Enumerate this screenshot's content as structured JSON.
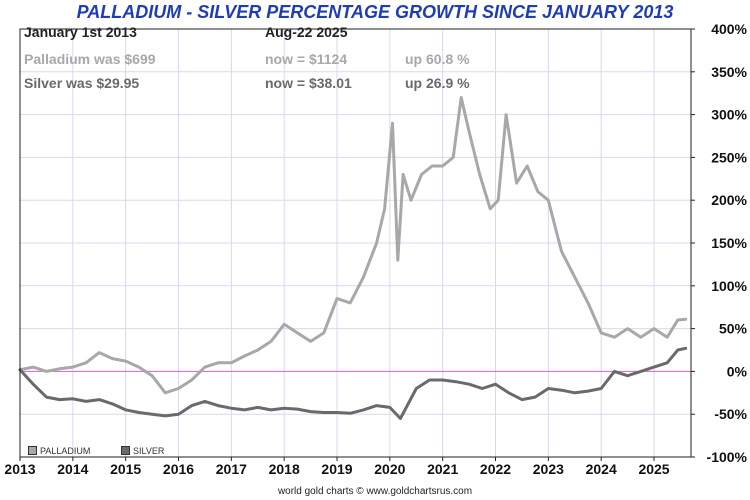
{
  "title": "PALLADIUM - SILVER PERCENTAGE GROWTH SINCE JANUARY 2013",
  "info": {
    "start_label": "January 1st 2013",
    "end_label": "Aug-22  2025",
    "palladium_start": "Palladium was $699",
    "palladium_now": "now = $1124",
    "palladium_change": "up 60.8 %",
    "silver_start": "Silver was $29.95",
    "silver_now": "now = $38.01",
    "silver_change": "up 26.9 %"
  },
  "credit": "world gold charts © www.goldchartsrus.com",
  "colors": {
    "palladium": "#a8a8a8",
    "silver": "#6a6a6a",
    "zero_line": "#d060d0",
    "grid": "#d8d8ee",
    "title": "#1f3cb8"
  },
  "chart_data": {
    "type": "line",
    "title": "PALLADIUM - SILVER PERCENTAGE GROWTH SINCE JANUARY 2013",
    "x_ticks": [
      "2013",
      "2014",
      "2015",
      "2016",
      "2017",
      "2018",
      "2019",
      "2020",
      "2021",
      "2022",
      "2023",
      "2024",
      "2025"
    ],
    "y_ticks": [
      "400%",
      "350%",
      "300%",
      "250%",
      "200%",
      "150%",
      "100%",
      "50%",
      "0%",
      "-50%",
      "-100%"
    ],
    "xlim": [
      2013,
      2025.7
    ],
    "ylim": [
      -100,
      400
    ],
    "grid": true,
    "legend": "bottom-left",
    "series": [
      {
        "name": "PALLADIUM",
        "x": [
          2013.0,
          2013.25,
          2013.5,
          2013.75,
          2014.0,
          2014.25,
          2014.5,
          2014.75,
          2015.0,
          2015.25,
          2015.5,
          2015.75,
          2016.0,
          2016.25,
          2016.5,
          2016.75,
          2017.0,
          2017.25,
          2017.5,
          2017.75,
          2018.0,
          2018.25,
          2018.5,
          2018.75,
          2019.0,
          2019.25,
          2019.5,
          2019.75,
          2019.9,
          2020.05,
          2020.15,
          2020.25,
          2020.4,
          2020.6,
          2020.8,
          2021.0,
          2021.2,
          2021.35,
          2021.5,
          2021.7,
          2021.9,
          2022.05,
          2022.2,
          2022.4,
          2022.6,
          2022.8,
          2023.0,
          2023.25,
          2023.5,
          2023.75,
          2024.0,
          2024.25,
          2024.5,
          2024.75,
          2025.0,
          2025.25,
          2025.45,
          2025.6
        ],
        "values": [
          2,
          5,
          0,
          3,
          5,
          10,
          22,
          15,
          12,
          5,
          -5,
          -25,
          -20,
          -10,
          5,
          10,
          10,
          18,
          25,
          35,
          55,
          45,
          35,
          45,
          85,
          80,
          110,
          150,
          190,
          290,
          130,
          230,
          200,
          230,
          240,
          240,
          250,
          320,
          280,
          230,
          190,
          200,
          300,
          220,
          240,
          210,
          200,
          140,
          110,
          80,
          45,
          40,
          50,
          40,
          50,
          40,
          60,
          61
        ]
      },
      {
        "name": "SILVER",
        "x": [
          2013.0,
          2013.25,
          2013.5,
          2013.75,
          2014.0,
          2014.25,
          2014.5,
          2014.75,
          2015.0,
          2015.25,
          2015.5,
          2015.75,
          2016.0,
          2016.25,
          2016.5,
          2016.75,
          2017.0,
          2017.25,
          2017.5,
          2017.75,
          2018.0,
          2018.25,
          2018.5,
          2018.75,
          2019.0,
          2019.25,
          2019.5,
          2019.75,
          2020.0,
          2020.2,
          2020.5,
          2020.75,
          2021.0,
          2021.25,
          2021.5,
          2021.75,
          2022.0,
          2022.25,
          2022.5,
          2022.75,
          2023.0,
          2023.25,
          2023.5,
          2023.75,
          2024.0,
          2024.25,
          2024.5,
          2024.75,
          2025.0,
          2025.25,
          2025.45,
          2025.6
        ],
        "values": [
          2,
          -15,
          -30,
          -33,
          -32,
          -35,
          -33,
          -38,
          -45,
          -48,
          -50,
          -52,
          -50,
          -40,
          -35,
          -40,
          -43,
          -45,
          -42,
          -45,
          -43,
          -44,
          -47,
          -48,
          -48,
          -49,
          -45,
          -40,
          -42,
          -55,
          -20,
          -10,
          -10,
          -12,
          -15,
          -20,
          -15,
          -25,
          -33,
          -30,
          -20,
          -22,
          -25,
          -23,
          -20,
          0,
          -5,
          0,
          5,
          10,
          25,
          27
        ]
      }
    ]
  }
}
